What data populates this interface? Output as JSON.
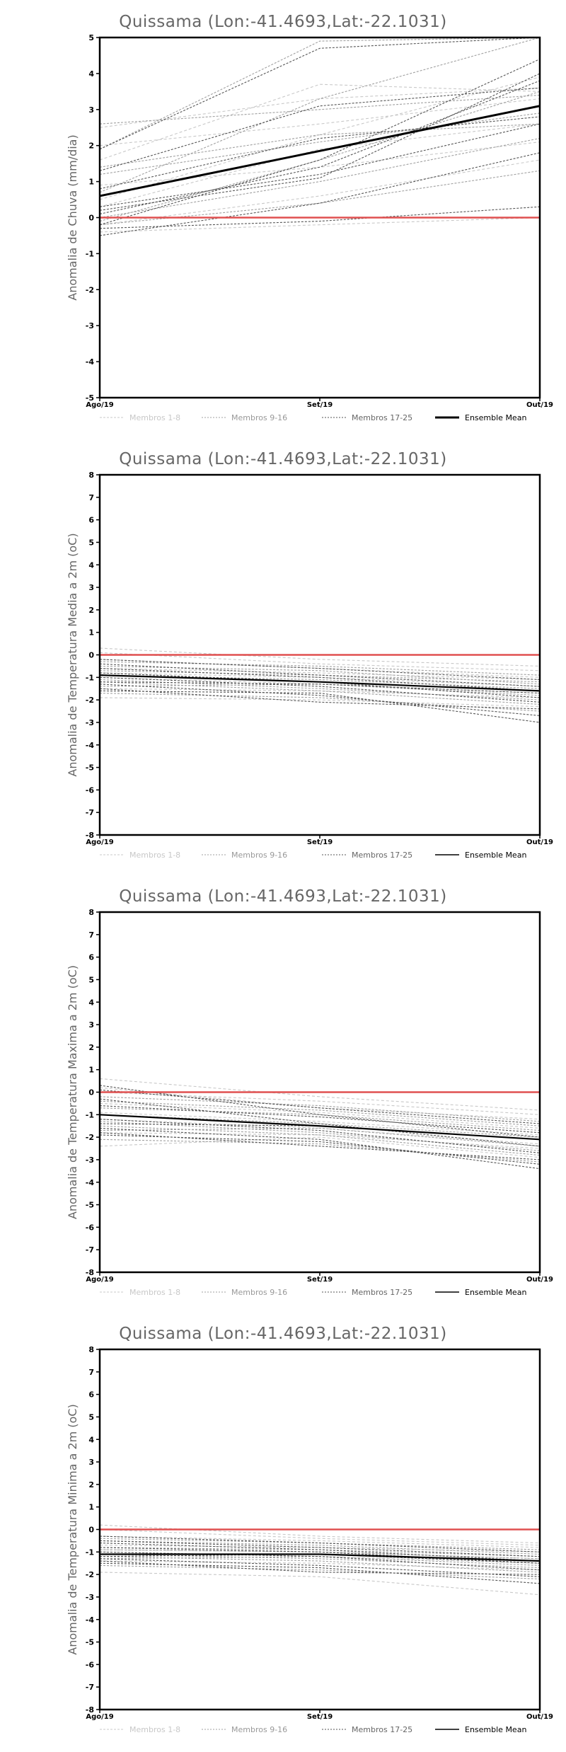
{
  "legend": {
    "members_1_8": "Membros 1-8",
    "members_9_16": "Membros 9-16",
    "members_17_25": "Membros 17-25",
    "ensemble_mean": "Ensemble Mean"
  },
  "colors": {
    "members_1_8": "#c8c8c8",
    "members_9_16": "#a0a0a0",
    "members_17_25": "#555555",
    "ensemble_mean": "#000000",
    "zero_line": "#e05050",
    "frame": "#000000"
  },
  "chart_data": [
    {
      "type": "line",
      "title": "Quissama (Lon:-41.4693,Lat:-22.1031)",
      "xlabel": "",
      "ylabel": "Anomalia de Chuva (mm/dia)",
      "x": [
        "Ago/19",
        "Set/19",
        "Out/19"
      ],
      "ylim": [
        -5,
        5
      ],
      "yticks": [
        -5,
        -4,
        -3,
        -2,
        -1,
        0,
        1,
        2,
        3,
        4,
        5
      ],
      "reference_line": 0,
      "grid": false,
      "legend_position": "bottom",
      "ensemble_mean": [
        0.6,
        1.85,
        3.1
      ],
      "members_1_8": [
        [
          2.5,
          3.3,
          3.6
        ],
        [
          1.6,
          3.7,
          3.5
        ],
        [
          0.3,
          1.9,
          2.6
        ],
        [
          -0.2,
          0.6,
          1.6
        ],
        [
          2.0,
          2.6,
          3.3
        ],
        [
          0.9,
          1.4,
          2.1
        ],
        [
          0.5,
          2.3,
          3.9
        ],
        [
          -0.4,
          -0.2,
          0.0
        ]
      ],
      "members_9_16": [
        [
          2.6,
          3.0,
          3.4
        ],
        [
          1.2,
          2.1,
          2.9
        ],
        [
          0.0,
          1.0,
          2.2
        ],
        [
          1.9,
          4.9,
          5.0
        ],
        [
          -0.2,
          0.4,
          1.3
        ],
        [
          0.7,
          3.3,
          5.0
        ],
        [
          -0.1,
          1.6,
          3.5
        ],
        [
          1.4,
          2.3,
          2.6
        ]
      ],
      "members_17_25": [
        [
          1.9,
          4.7,
          5.0
        ],
        [
          0.3,
          1.2,
          2.6
        ],
        [
          -0.2,
          1.6,
          4.4
        ],
        [
          0.1,
          1.4,
          3.8
        ],
        [
          1.3,
          3.1,
          3.6
        ],
        [
          -0.3,
          -0.1,
          0.3
        ],
        [
          0.8,
          2.2,
          2.8
        ],
        [
          -0.5,
          0.4,
          1.8
        ],
        [
          0.2,
          1.1,
          4.0
        ]
      ]
    },
    {
      "type": "line",
      "title": "Quissama (Lon:-41.4693,Lat:-22.1031)",
      "xlabel": "",
      "ylabel": "Anomalia de Temperatura Media a 2m (oC)",
      "x": [
        "Ago/19",
        "Set/19",
        "Out/19"
      ],
      "ylim": [
        -8,
        8
      ],
      "yticks": [
        -8,
        -7,
        -6,
        -5,
        -4,
        -3,
        -2,
        -1,
        0,
        1,
        2,
        3,
        4,
        5,
        6,
        7,
        8
      ],
      "reference_line": 0,
      "grid": false,
      "legend_position": "bottom",
      "ensemble_mean": [
        -0.9,
        -1.2,
        -1.6
      ],
      "members_1_8": [
        [
          0.3,
          -0.2,
          -0.5
        ],
        [
          -0.6,
          -0.8,
          -1.1
        ],
        [
          -1.9,
          -2.0,
          -2.3
        ],
        [
          -1.0,
          -1.3,
          -1.7
        ],
        [
          -0.2,
          -0.6,
          -1.0
        ],
        [
          -1.5,
          -1.6,
          -1.9
        ],
        [
          -0.8,
          -1.0,
          -1.4
        ],
        [
          0.1,
          -0.4,
          -0.7
        ]
      ],
      "members_9_16": [
        [
          -1.2,
          -1.6,
          -2.2
        ],
        [
          -0.5,
          -0.7,
          -1.3
        ],
        [
          -1.7,
          -1.9,
          -2.5
        ],
        [
          -0.9,
          -1.1,
          -1.5
        ],
        [
          -1.4,
          -1.3,
          -1.8
        ],
        [
          -0.3,
          -0.5,
          -0.9
        ],
        [
          -1.1,
          -1.5,
          -2.0
        ],
        [
          -0.7,
          -0.9,
          -1.2
        ]
      ],
      "members_17_25": [
        [
          -1.3,
          -1.8,
          -2.7
        ],
        [
          -0.6,
          -1.0,
          -1.6
        ],
        [
          -1.0,
          -1.4,
          -2.1
        ],
        [
          -0.4,
          -0.9,
          -1.4
        ],
        [
          -1.6,
          -1.7,
          -3.0
        ],
        [
          -0.8,
          -1.2,
          -1.9
        ],
        [
          -1.2,
          -1.3,
          -1.7
        ],
        [
          -0.2,
          -0.6,
          -1.1
        ],
        [
          -1.5,
          -2.1,
          -2.4
        ]
      ]
    },
    {
      "type": "line",
      "title": "Quissama (Lon:-41.4693,Lat:-22.1031)",
      "xlabel": "",
      "ylabel": "Anomalia de Temperatura Maxima a 2m (oC)",
      "x": [
        "Ago/19",
        "Set/19",
        "Out/19"
      ],
      "ylim": [
        -8,
        8
      ],
      "yticks": [
        -8,
        -7,
        -6,
        -5,
        -4,
        -3,
        -2,
        -1,
        0,
        1,
        2,
        3,
        4,
        5,
        6,
        7,
        8
      ],
      "reference_line": 0,
      "grid": false,
      "legend_position": "bottom",
      "ensemble_mean": [
        -1.0,
        -1.5,
        -2.1
      ],
      "members_1_8": [
        [
          0.6,
          -0.2,
          -0.8
        ],
        [
          -0.5,
          -0.9,
          -1.6
        ],
        [
          -2.4,
          -2.0,
          -2.9
        ],
        [
          -1.2,
          -1.6,
          -2.3
        ],
        [
          0.2,
          -0.7,
          -1.2
        ],
        [
          -1.8,
          -1.9,
          -2.5
        ],
        [
          -0.9,
          -1.3,
          -1.9
        ],
        [
          0.0,
          -0.4,
          -1.0
        ]
      ],
      "members_9_16": [
        [
          -1.5,
          -1.9,
          -2.8
        ],
        [
          -0.4,
          -0.8,
          -1.5
        ],
        [
          -2.1,
          -2.3,
          -3.1
        ],
        [
          -1.0,
          -1.4,
          -2.0
        ],
        [
          -1.7,
          -1.6,
          -2.4
        ],
        [
          -0.2,
          -0.6,
          -1.3
        ],
        [
          -1.3,
          -1.8,
          -2.6
        ],
        [
          -0.7,
          -1.0,
          -1.7
        ]
      ],
      "members_17_25": [
        [
          -1.6,
          -2.1,
          -3.4
        ],
        [
          0.3,
          -1.0,
          -2.0
        ],
        [
          -1.2,
          -1.7,
          -2.7
        ],
        [
          -0.6,
          -1.1,
          -1.8
        ],
        [
          -1.9,
          -2.2,
          -3.2
        ],
        [
          -0.3,
          -1.4,
          -2.4
        ],
        [
          -1.4,
          -1.5,
          -2.1
        ],
        [
          0.1,
          -0.7,
          -1.4
        ],
        [
          -1.8,
          -2.4,
          -3.0
        ]
      ]
    },
    {
      "type": "line",
      "title": "Quissama (Lon:-41.4693,Lat:-22.1031)",
      "xlabel": "",
      "ylabel": "Anomalia de Temperatura Minima a 2m (oC)",
      "x": [
        "Ago/19",
        "Set/19",
        "Out/19"
      ],
      "ylim": [
        -8,
        8
      ],
      "yticks": [
        -8,
        -7,
        -6,
        -5,
        -4,
        -3,
        -2,
        -1,
        0,
        1,
        2,
        3,
        4,
        5,
        6,
        7,
        8
      ],
      "reference_line": 0,
      "grid": false,
      "legend_position": "bottom",
      "ensemble_mean": [
        -1.1,
        -1.1,
        -1.4
      ],
      "members_1_8": [
        [
          0.2,
          -0.3,
          -0.6
        ],
        [
          -0.7,
          -0.8,
          -1.0
        ],
        [
          -1.9,
          -2.1,
          -2.9
        ],
        [
          -1.0,
          -1.2,
          -1.5
        ],
        [
          -0.3,
          -0.5,
          -0.8
        ],
        [
          -1.4,
          -1.5,
          -1.8
        ],
        [
          -0.9,
          -1.0,
          -1.3
        ],
        [
          0.0,
          -0.4,
          -0.7
        ]
      ],
      "members_9_16": [
        [
          -1.2,
          -1.4,
          -1.9
        ],
        [
          -0.5,
          -0.7,
          -1.1
        ],
        [
          -1.6,
          -1.8,
          -2.2
        ],
        [
          -0.9,
          -1.0,
          -1.3
        ],
        [
          -1.3,
          -1.2,
          -1.6
        ],
        [
          -0.4,
          -0.6,
          -0.9
        ],
        [
          -1.1,
          -1.3,
          -1.7
        ],
        [
          -0.8,
          -0.9,
          -1.2
        ]
      ],
      "members_17_25": [
        [
          -1.3,
          -1.6,
          -2.1
        ],
        [
          -0.6,
          -0.9,
          -1.4
        ],
        [
          -1.0,
          -1.2,
          -1.8
        ],
        [
          -0.5,
          -0.8,
          -1.2
        ],
        [
          -1.5,
          -1.7,
          -2.4
        ],
        [
          -0.8,
          -1.0,
          -1.5
        ],
        [
          -1.2,
          -1.1,
          -1.5
        ],
        [
          -0.3,
          -0.6,
          -1.0
        ],
        [
          -1.4,
          -1.9,
          -2.0
        ]
      ]
    }
  ]
}
